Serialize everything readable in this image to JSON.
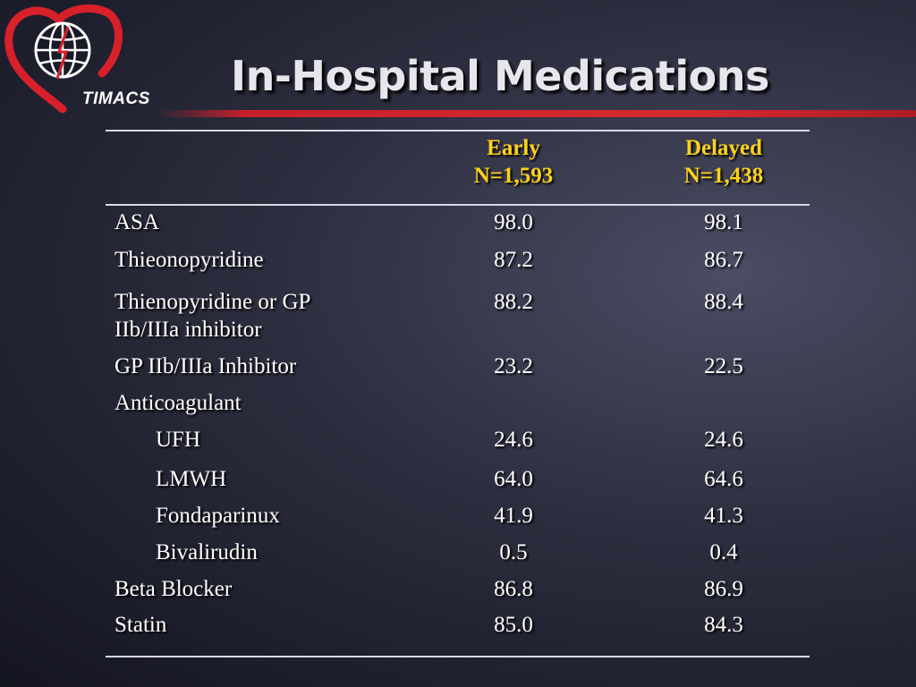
{
  "logo": {
    "text": "TIMACS",
    "icon": "heart-globe-logo",
    "colors": {
      "heart": "#d8202a",
      "globe": "#ffffff"
    }
  },
  "title": "In-Hospital Medications",
  "colors": {
    "header_text": "#ffd21a",
    "accent_line": "#d62a2f",
    "rule_line": "#d8d8e6"
  },
  "table": {
    "columns": [
      {
        "line1": "Early",
        "line2": "N=1,593"
      },
      {
        "line1": "Delayed",
        "line2": "N=1,438"
      }
    ],
    "rows": [
      {
        "label": "ASA",
        "early": "98.0",
        "delayed": "98.1"
      },
      {
        "label": "Thieonopyridine",
        "early": "87.2",
        "delayed": "86.7"
      },
      {
        "label": "Thienopyridine or GP",
        "label2": "IIb/IIIa inhibitor",
        "early": "88.2",
        "delayed": "88.4"
      },
      {
        "label": "GP IIb/IIIa Inhibitor",
        "early": "23.2",
        "delayed": "22.5"
      },
      {
        "label": "Anticoagulant",
        "early": "",
        "delayed": ""
      },
      {
        "label": "UFH",
        "early": "24.6",
        "delayed": "24.6"
      },
      {
        "label": "LMWH",
        "early": "64.0",
        "delayed": "64.6"
      },
      {
        "label": "Fondaparinux",
        "early": "41.9",
        "delayed": "41.3"
      },
      {
        "label": "Bivalirudin",
        "early": "0.5",
        "delayed": "0.4"
      },
      {
        "label": "Beta Blocker",
        "early": "86.8",
        "delayed": "86.9"
      },
      {
        "label": "Statin",
        "early": "85.0",
        "delayed": "84.3"
      }
    ]
  }
}
